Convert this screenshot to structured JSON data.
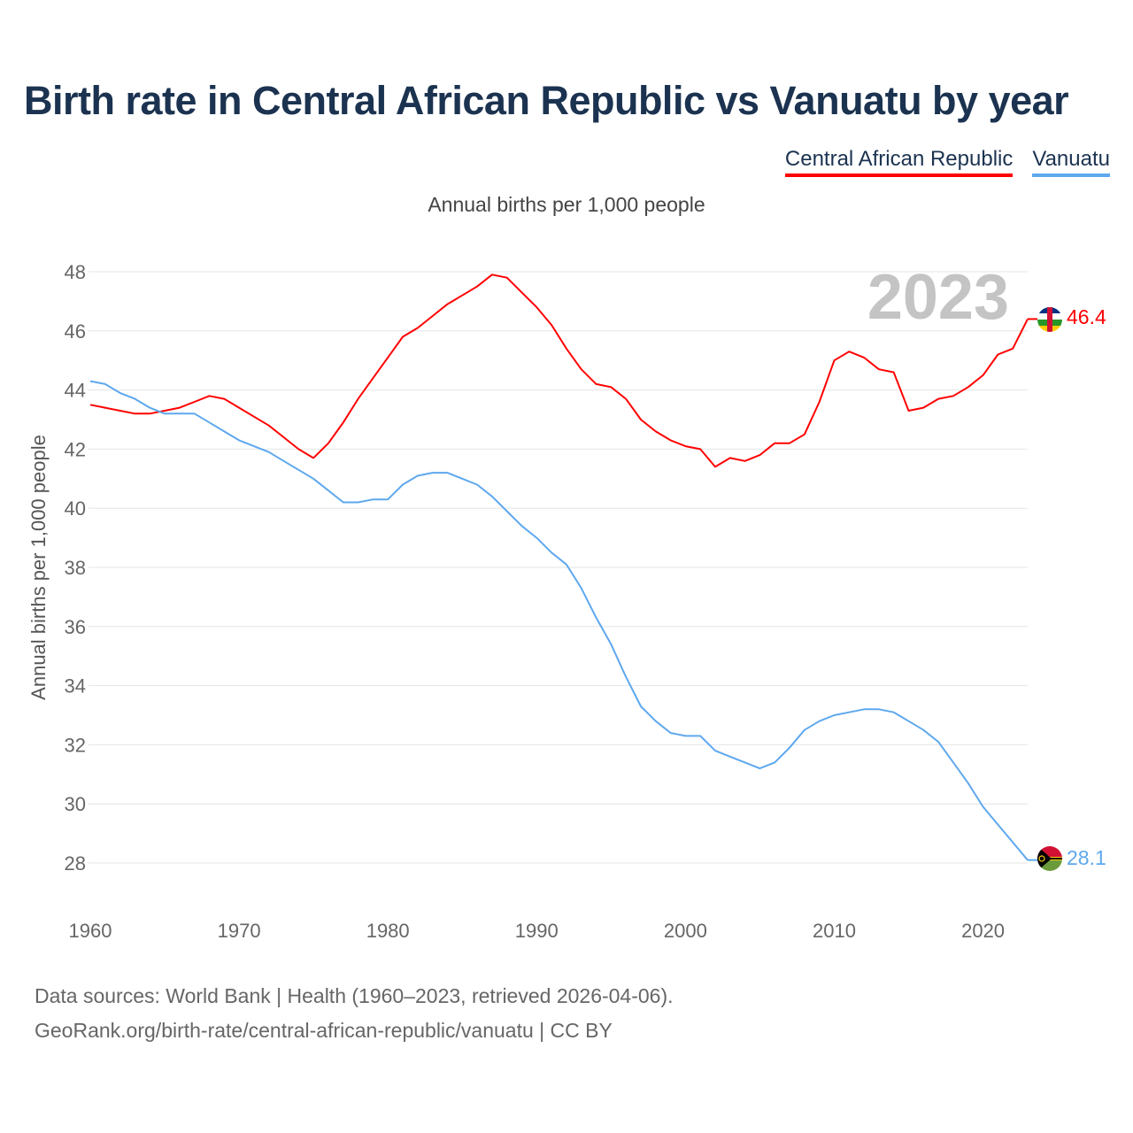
{
  "title": "Birth rate in Central African Republic vs Vanuatu by year",
  "legend": [
    "Central African Republic",
    "Vanuatu"
  ],
  "subtitle": "Annual births per 1,000 people",
  "year_label": "2023",
  "footer": {
    "line1": "Data sources: World Bank | Health (1960–2023, retrieved 2026-04-06).",
    "line2": "GeoRank.org/birth-rate/central-african-republic/vanuatu | CC BY"
  },
  "chart_data": {
    "type": "line",
    "title": "Birth rate in Central African Republic vs Vanuatu by year",
    "xlabel": "",
    "ylabel": "Annual births per 1,000 people",
    "xlim": [
      1960,
      2023
    ],
    "ylim": [
      28,
      48
    ],
    "xticks": [
      1960,
      1970,
      1980,
      1990,
      2000,
      2010,
      2020
    ],
    "yticks": [
      28,
      30,
      32,
      34,
      36,
      38,
      40,
      42,
      44,
      46,
      48
    ],
    "grid": true,
    "legend_position": "top-right",
    "x_start": 1960,
    "series": [
      {
        "name": "Central African Republic",
        "color": "#ff0000",
        "end_label": "46.4",
        "values": [
          43.5,
          43.4,
          43.3,
          43.2,
          43.2,
          43.3,
          43.4,
          43.6,
          43.8,
          43.7,
          43.4,
          43.1,
          42.8,
          42.4,
          42.0,
          41.7,
          42.2,
          42.9,
          43.7,
          44.4,
          45.1,
          45.8,
          46.1,
          46.5,
          46.9,
          47.2,
          47.5,
          47.9,
          47.8,
          47.3,
          46.8,
          46.2,
          45.4,
          44.7,
          44.2,
          44.1,
          43.7,
          43.0,
          42.6,
          42.3,
          42.1,
          42.0,
          41.4,
          41.7,
          41.6,
          41.8,
          42.2,
          42.2,
          42.5,
          43.6,
          45.0,
          45.3,
          45.1,
          44.7,
          44.6,
          43.3,
          43.4,
          43.7,
          43.8,
          44.1,
          44.5,
          45.2,
          45.4,
          46.4
        ]
      },
      {
        "name": "Vanuatu",
        "color": "#5ea8ee",
        "end_label": "28.1",
        "values": [
          44.3,
          44.2,
          43.9,
          43.7,
          43.4,
          43.2,
          43.2,
          43.2,
          42.9,
          42.6,
          42.3,
          42.1,
          41.9,
          41.6,
          41.3,
          41.0,
          40.6,
          40.2,
          40.2,
          40.3,
          40.3,
          40.8,
          41.1,
          41.2,
          41.2,
          41.0,
          40.8,
          40.4,
          39.9,
          39.4,
          39.0,
          38.5,
          38.1,
          37.3,
          36.3,
          35.4,
          34.3,
          33.3,
          32.8,
          32.4,
          32.3,
          32.3,
          31.8,
          31.6,
          31.4,
          31.2,
          31.4,
          31.9,
          32.5,
          32.8,
          33.0,
          33.1,
          33.2,
          33.2,
          33.1,
          32.8,
          32.5,
          32.1,
          31.4,
          30.7,
          29.9,
          29.3,
          28.7,
          28.1
        ]
      }
    ]
  }
}
